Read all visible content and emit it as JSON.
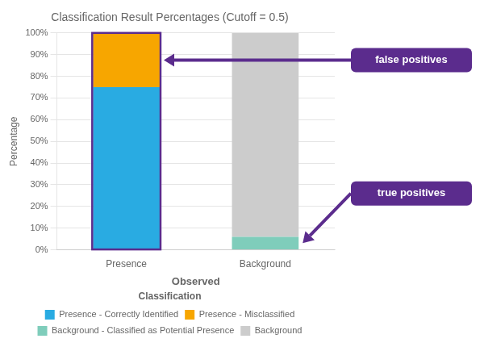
{
  "chart_data": {
    "type": "bar",
    "stacked": true,
    "title": "Classification Result Percentages (Cutoff = 0.5)",
    "xlabel": "Observed",
    "ylabel": "Percentage",
    "categories": [
      "Presence",
      "Background"
    ],
    "series": [
      {
        "name": "Presence - Correctly Identified",
        "color": "#29ABE2",
        "values": [
          75,
          0
        ]
      },
      {
        "name": "Presence - Misclassified",
        "color": "#F7A600",
        "values": [
          25,
          0
        ]
      },
      {
        "name": "Background - Classified as Potential Presence",
        "color": "#7FCDBB",
        "values": [
          0,
          6
        ]
      },
      {
        "name": "Background",
        "color": "#CCCCCC",
        "values": [
          0,
          94
        ]
      }
    ],
    "ylim": [
      0,
      100
    ],
    "yticks": [
      {
        "value": 0,
        "label": "0%"
      },
      {
        "value": 10,
        "label": "10%"
      },
      {
        "value": 20,
        "label": "20%"
      },
      {
        "value": 30,
        "label": "30%"
      },
      {
        "value": 40,
        "label": "40%"
      },
      {
        "value": 50,
        "label": "50%"
      },
      {
        "value": 60,
        "label": "60%"
      },
      {
        "value": 70,
        "label": "70%"
      },
      {
        "value": 80,
        "label": "80%"
      },
      {
        "value": 90,
        "label": "90%"
      },
      {
        "value": 100,
        "label": "100%"
      }
    ],
    "grid": true,
    "legend": "bottom",
    "legend_title": "Classification",
    "annotations": [
      {
        "text": "false positives",
        "color": "#5B2C8D"
      },
      {
        "text": "true positives",
        "color": "#5B2C8D"
      }
    ]
  }
}
